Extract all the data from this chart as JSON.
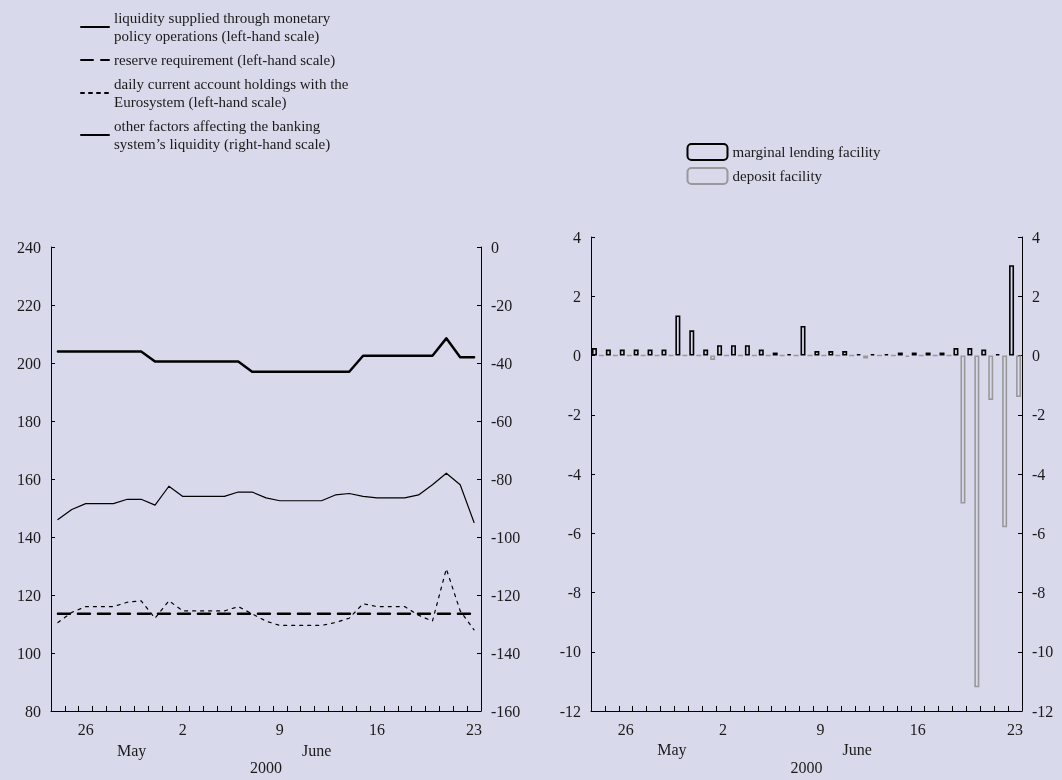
{
  "chart_data": [
    {
      "type": "line",
      "categories": [
        null,
        null,
        "26",
        null,
        null,
        null,
        null,
        null,
        null,
        "2",
        null,
        null,
        null,
        null,
        null,
        null,
        "9",
        null,
        null,
        null,
        null,
        null,
        null,
        "16",
        null,
        null,
        null,
        null,
        null,
        null,
        "23"
      ],
      "xlabel": "2000",
      "annotations": [
        "May",
        "June"
      ],
      "ylim": [
        80,
        240
      ],
      "yticks": [
        80,
        100,
        120,
        140,
        160,
        180,
        200,
        220,
        240
      ],
      "y2lim": [
        -160,
        0
      ],
      "y2ticks": [
        -160,
        -140,
        -120,
        -100,
        -80,
        -60,
        -40,
        -20,
        0
      ],
      "legend": "top left",
      "marker": "none",
      "grid": false,
      "series": [
        {
          "name": "liquidity supplied through monetary policy operations (left-hand scale)",
          "color": "#000000",
          "line_style": "solid",
          "values": [
            204,
            204,
            204,
            204,
            204,
            204,
            204,
            200.5,
            200.5,
            200.5,
            200.5,
            200.5,
            200.5,
            200.5,
            197,
            197,
            197,
            197,
            197,
            197,
            197,
            197,
            202.5,
            202.5,
            202.5,
            202.5,
            202.5,
            202.5,
            208.5,
            202,
            202
          ]
        },
        {
          "name": "reserve requirement (left-hand scale)",
          "color": "#000000",
          "line_style": "dashed",
          "values": [
            113.5,
            113.5,
            113.5,
            113.5,
            113.5,
            113.5,
            113.5,
            113.5,
            113.5,
            113.5,
            113.5,
            113.5,
            113.5,
            113.5,
            113.5,
            113.5,
            113.5,
            113.5,
            113.5,
            113.5,
            113.5,
            113.5,
            113.5,
            113.5,
            113.5,
            113.5,
            113.5,
            113.5,
            113.5,
            113.5,
            113.5
          ]
        },
        {
          "name": "daily current account holdings with the Eurosystem (left-hand scale)",
          "color": "#000000",
          "line_style": "dotted",
          "values": [
            110.5,
            114,
            116,
            116,
            116,
            117.5,
            118,
            112,
            118,
            114.5,
            114.5,
            114.5,
            114.5,
            116,
            113.5,
            111,
            109.5,
            109.5,
            109.5,
            109.5,
            110.5,
            112,
            117,
            116,
            116,
            116,
            113,
            111,
            129,
            114.5,
            108
          ]
        },
        {
          "name": "other factors affecting the banking system’s liquidity (right-hand scale)",
          "color": "#000000",
          "line_style": "solid",
          "axis": "y2",
          "values": [
            -94,
            -90.5,
            -88.5,
            -88.5,
            -88.5,
            -87,
            -87,
            -89,
            -82.5,
            -86,
            -86,
            -86,
            -86,
            -84.5,
            -84.5,
            -86.5,
            -87.5,
            -87.5,
            -87.5,
            -87.5,
            -85.5,
            -85,
            -86,
            -86.5,
            -86.5,
            -86.5,
            -85.5,
            -82,
            -78,
            -82,
            -95
          ]
        }
      ]
    },
    {
      "type": "bar",
      "categories": [
        null,
        null,
        "26",
        null,
        null,
        null,
        null,
        null,
        null,
        "2",
        null,
        null,
        null,
        null,
        null,
        null,
        "9",
        null,
        null,
        null,
        null,
        null,
        null,
        "16",
        null,
        null,
        null,
        null,
        null,
        null,
        "23"
      ],
      "xlabel": "2000",
      "annotations": [
        "May",
        "June"
      ],
      "ylim": [
        -12,
        4
      ],
      "yticks": [
        -12,
        -10,
        -8,
        -6,
        -4,
        -2,
        0,
        2,
        4
      ],
      "y2lim": [
        -12,
        4
      ],
      "y2ticks": [
        -12,
        -10,
        -8,
        -6,
        -4,
        -2,
        0,
        2,
        4
      ],
      "legend": "top",
      "grid": false,
      "series": [
        {
          "name": "marginal lending facility",
          "color": "#000000",
          "values": [
            0.25,
            0.2,
            0.2,
            0.2,
            0.2,
            0.2,
            1.35,
            0.85,
            0.2,
            0.35,
            0.35,
            0.35,
            0.2,
            0.1,
            0.05,
            1,
            0.15,
            0.15,
            0.15,
            0.05,
            0.05,
            0.05,
            0.1,
            0.1,
            0.1,
            0.1,
            0.25,
            0.25,
            0.2,
            0.05,
            3.05
          ]
        },
        {
          "name": "deposit facility",
          "color": "#999999",
          "values": [
            0,
            0,
            0,
            0,
            0,
            0,
            0,
            0,
            -0.15,
            0,
            0,
            0,
            0,
            0,
            0,
            0,
            0,
            0,
            0,
            -0.1,
            0,
            0,
            -0.05,
            0,
            0,
            0,
            -5,
            -11.2,
            -1.5,
            -5.8,
            -1.4
          ]
        }
      ]
    }
  ]
}
